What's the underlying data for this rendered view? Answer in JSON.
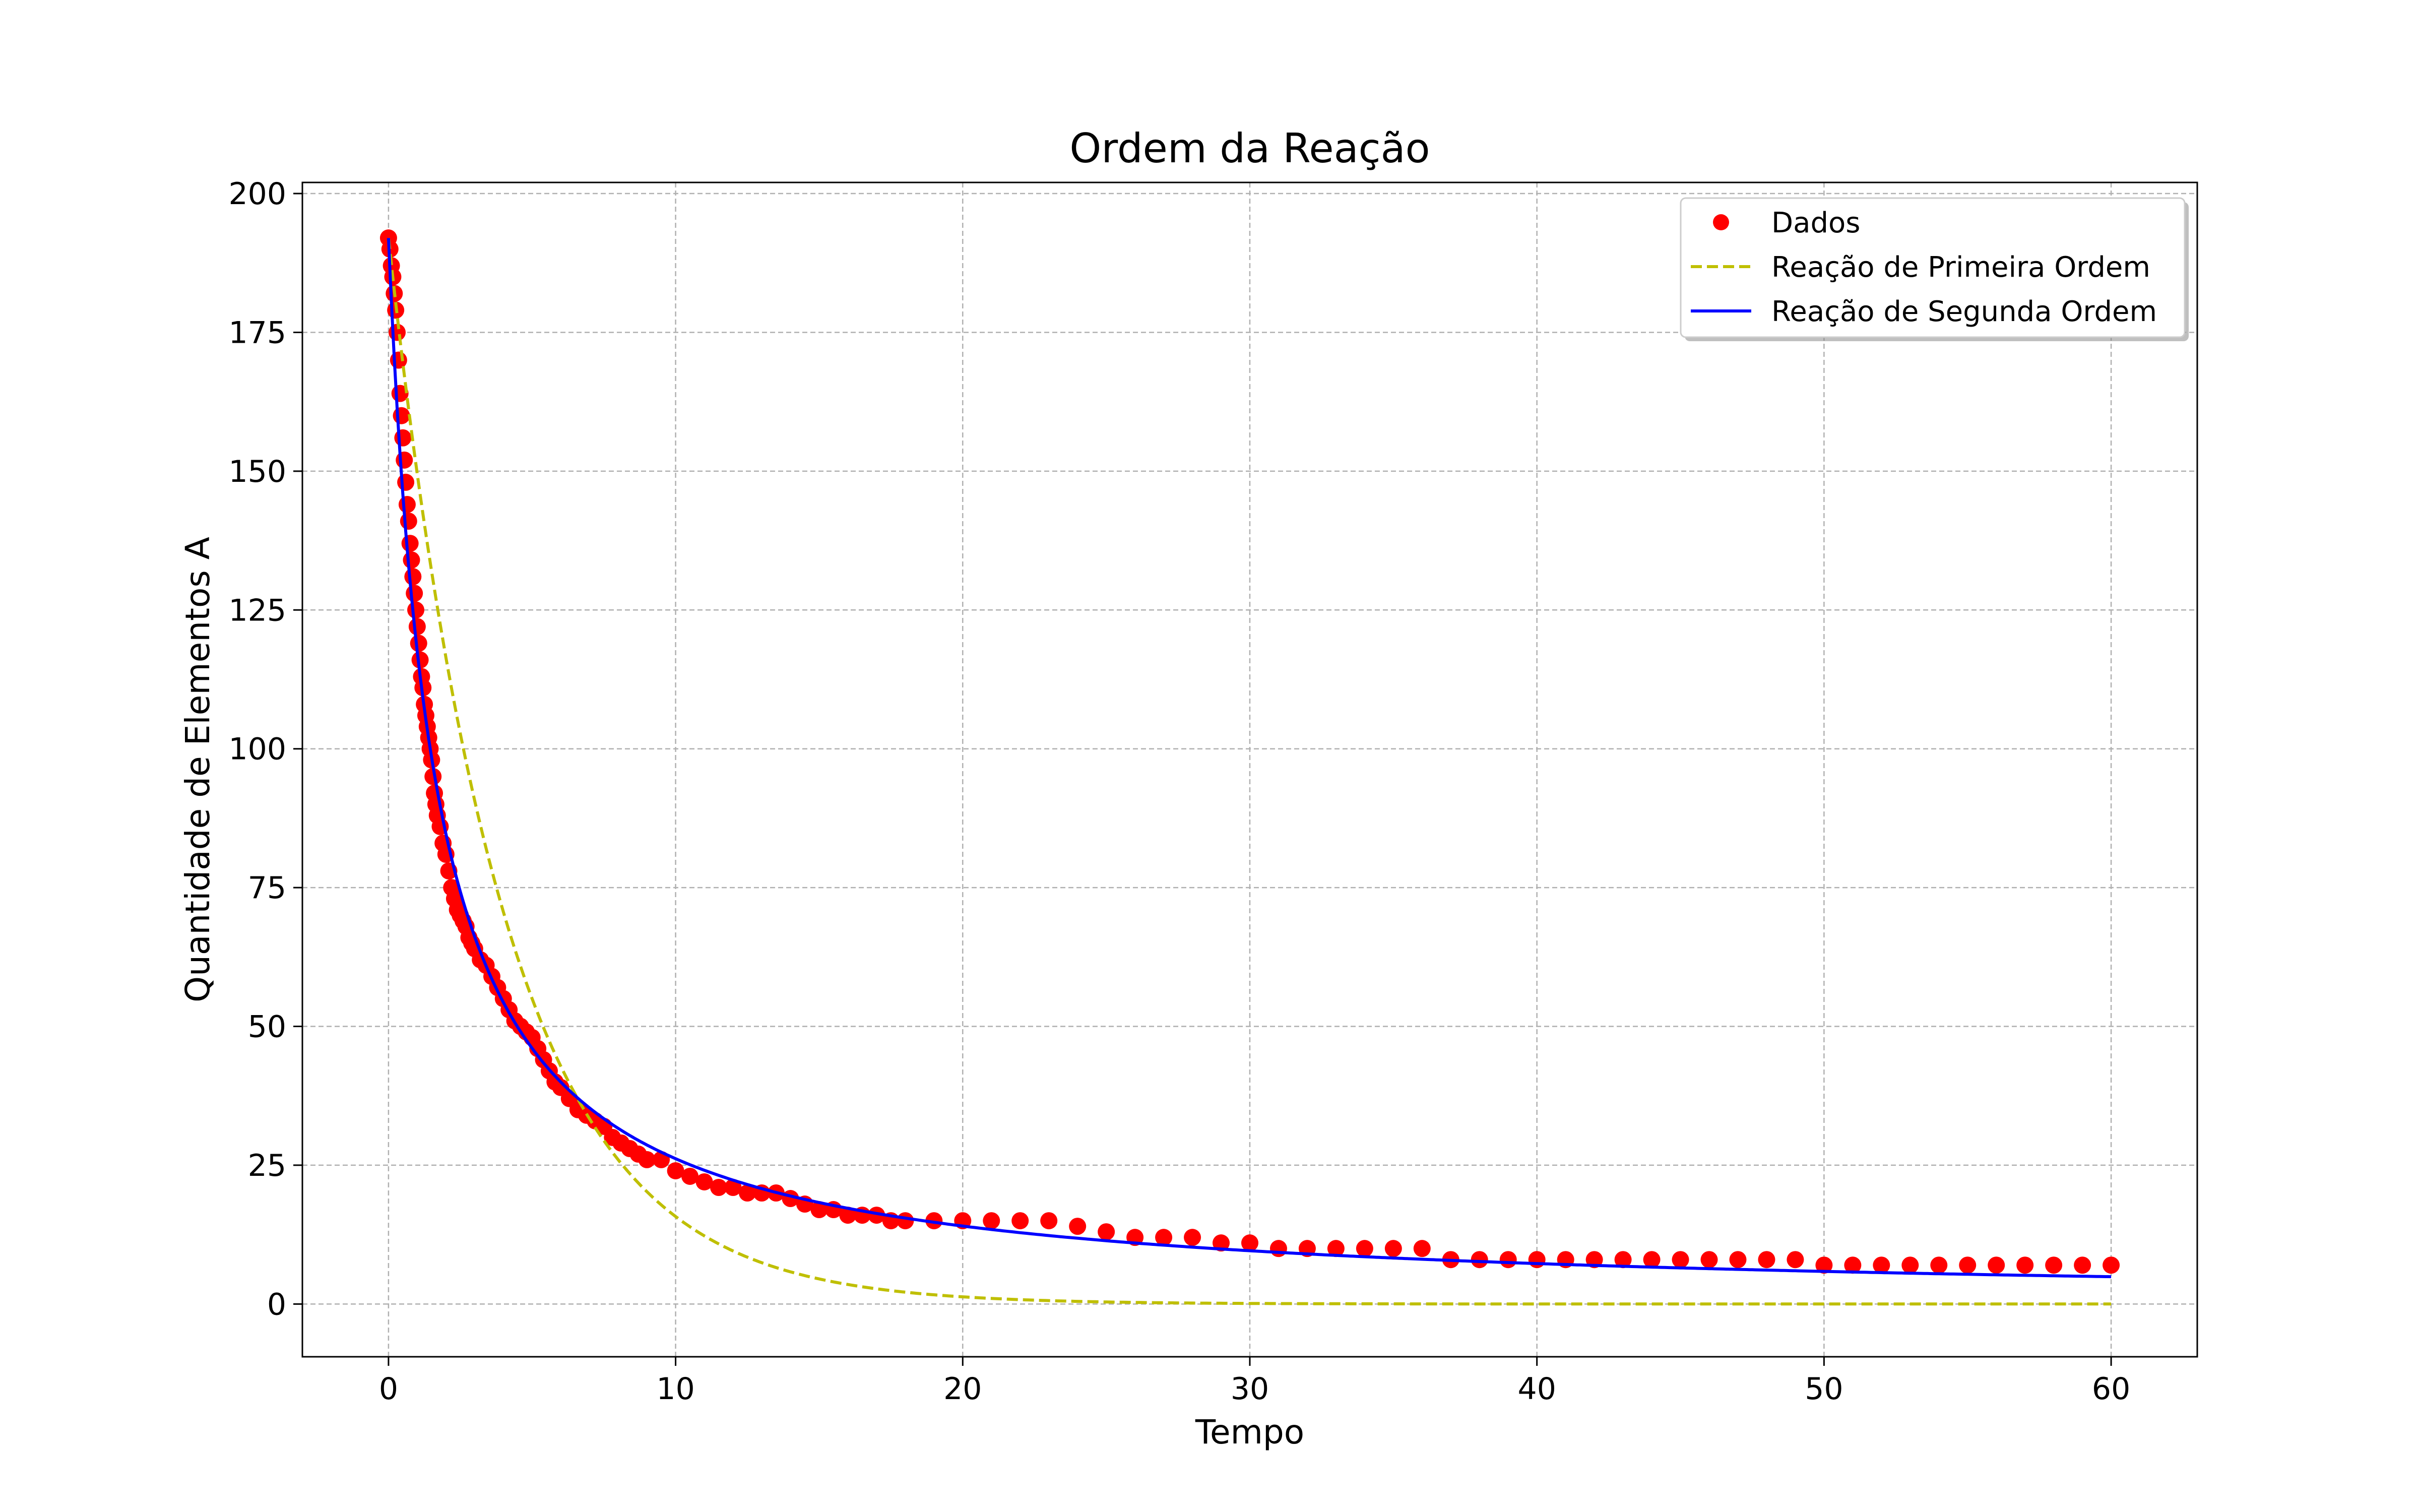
{
  "chart_data": {
    "type": "scatter",
    "title": "Ordem da Reação",
    "xlabel": "Tempo",
    "ylabel": "Quantidade de Elementos A",
    "xlim": [
      -3,
      63
    ],
    "ylim": [
      -9.5,
      202
    ],
    "xticks": [
      0,
      10,
      20,
      30,
      40,
      50,
      60
    ],
    "yticks": [
      0,
      25,
      50,
      75,
      100,
      125,
      150,
      175,
      200
    ],
    "grid": true,
    "legend_position": "upper-right",
    "initial_value": 192,
    "x_max": 60,
    "series": [
      {
        "name": "Dados",
        "kind": "points",
        "color": "#ff0000",
        "points": [
          [
            0.0,
            192
          ],
          [
            0.05,
            190
          ],
          [
            0.1,
            187
          ],
          [
            0.15,
            185
          ],
          [
            0.2,
            182
          ],
          [
            0.25,
            179
          ],
          [
            0.3,
            175
          ],
          [
            0.35,
            170
          ],
          [
            0.4,
            164
          ],
          [
            0.45,
            160
          ],
          [
            0.5,
            156
          ],
          [
            0.55,
            152
          ],
          [
            0.6,
            148
          ],
          [
            0.65,
            144
          ],
          [
            0.7,
            141
          ],
          [
            0.75,
            137
          ],
          [
            0.8,
            134
          ],
          [
            0.85,
            131
          ],
          [
            0.9,
            128
          ],
          [
            0.95,
            125
          ],
          [
            1.0,
            122
          ],
          [
            1.05,
            119
          ],
          [
            1.1,
            116
          ],
          [
            1.15,
            113
          ],
          [
            1.2,
            111
          ],
          [
            1.25,
            108
          ],
          [
            1.3,
            106
          ],
          [
            1.35,
            104
          ],
          [
            1.4,
            102
          ],
          [
            1.45,
            100
          ],
          [
            1.5,
            98
          ],
          [
            1.55,
            95
          ],
          [
            1.6,
            92
          ],
          [
            1.65,
            90
          ],
          [
            1.7,
            88
          ],
          [
            1.8,
            86
          ],
          [
            1.9,
            83
          ],
          [
            2.0,
            81
          ],
          [
            2.1,
            78
          ],
          [
            2.2,
            75
          ],
          [
            2.3,
            73
          ],
          [
            2.4,
            71
          ],
          [
            2.5,
            70
          ],
          [
            2.6,
            69
          ],
          [
            2.7,
            68
          ],
          [
            2.8,
            66
          ],
          [
            2.9,
            65
          ],
          [
            3.0,
            64
          ],
          [
            3.2,
            62
          ],
          [
            3.4,
            61
          ],
          [
            3.6,
            59
          ],
          [
            3.8,
            57
          ],
          [
            4.0,
            55
          ],
          [
            4.2,
            53
          ],
          [
            4.4,
            51
          ],
          [
            4.6,
            50
          ],
          [
            4.8,
            49
          ],
          [
            5.0,
            48
          ],
          [
            5.2,
            46
          ],
          [
            5.4,
            44
          ],
          [
            5.6,
            42
          ],
          [
            5.8,
            40
          ],
          [
            6.0,
            39
          ],
          [
            6.3,
            37
          ],
          [
            6.6,
            35
          ],
          [
            6.9,
            34
          ],
          [
            7.2,
            33
          ],
          [
            7.5,
            32
          ],
          [
            7.8,
            30
          ],
          [
            8.1,
            29
          ],
          [
            8.4,
            28
          ],
          [
            8.7,
            27
          ],
          [
            9.0,
            26
          ],
          [
            9.5,
            26
          ],
          [
            10.0,
            24
          ],
          [
            10.5,
            23
          ],
          [
            11.0,
            22
          ],
          [
            11.5,
            21
          ],
          [
            12.0,
            21
          ],
          [
            12.5,
            20
          ],
          [
            13.0,
            20
          ],
          [
            13.5,
            20
          ],
          [
            14.0,
            19
          ],
          [
            14.5,
            18
          ],
          [
            15.0,
            17
          ],
          [
            15.5,
            17
          ],
          [
            16.0,
            16
          ],
          [
            16.5,
            16
          ],
          [
            17.0,
            16
          ],
          [
            17.5,
            15
          ],
          [
            18.0,
            15
          ],
          [
            19.0,
            15
          ],
          [
            20.0,
            15
          ],
          [
            21.0,
            15
          ],
          [
            22.0,
            15
          ],
          [
            23.0,
            15
          ],
          [
            24.0,
            14
          ],
          [
            25.0,
            13
          ],
          [
            26.0,
            12
          ],
          [
            27.0,
            12
          ],
          [
            28.0,
            12
          ],
          [
            29.0,
            11
          ],
          [
            30.0,
            11
          ],
          [
            31.0,
            10
          ],
          [
            32.0,
            10
          ],
          [
            33.0,
            10
          ],
          [
            34.0,
            10
          ],
          [
            35.0,
            10
          ],
          [
            36.0,
            10
          ],
          [
            37.0,
            8
          ],
          [
            38.0,
            8
          ],
          [
            39.0,
            8
          ],
          [
            40.0,
            8
          ],
          [
            41.0,
            8
          ],
          [
            42.0,
            8
          ],
          [
            43.0,
            8
          ],
          [
            44.0,
            8
          ],
          [
            45.0,
            8
          ],
          [
            46.0,
            8
          ],
          [
            47.0,
            8
          ],
          [
            48.0,
            8
          ],
          [
            49.0,
            8
          ],
          [
            50.0,
            7
          ],
          [
            51.0,
            7
          ],
          [
            52.0,
            7
          ],
          [
            53.0,
            7
          ],
          [
            54.0,
            7
          ],
          [
            55.0,
            7
          ],
          [
            56.0,
            7
          ],
          [
            57.0,
            7
          ],
          [
            58.0,
            7
          ],
          [
            59.0,
            7
          ],
          [
            60.0,
            7
          ]
        ]
      },
      {
        "name": "Reação de Primeira Ordem",
        "kind": "dashed-line",
        "color": "#bfbf00",
        "model": "first-order",
        "k": 0.25
      },
      {
        "name": "Reação de Segunda Ordem",
        "kind": "line",
        "color": "#0000ff",
        "model": "second-order",
        "k": 0.0033
      }
    ]
  }
}
